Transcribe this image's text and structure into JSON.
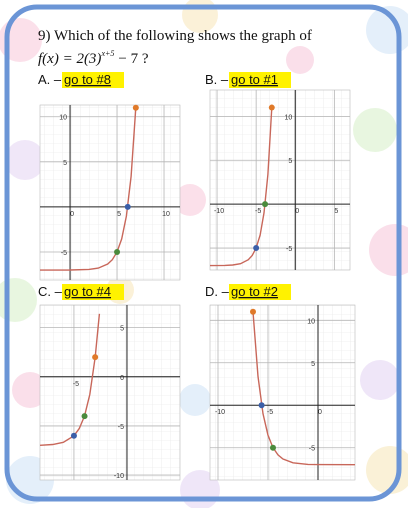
{
  "question": {
    "title": "9) Which of the following shows the graph of",
    "formula": {
      "lhs": "f(x) = 2(3)",
      "exponent": "x+5",
      "rhs": "− 7 ?"
    }
  },
  "options": [
    {
      "letter": "A. –",
      "link": "go to #8",
      "graph": {
        "xlim": [
          -3.2,
          11.7
        ],
        "ylim": [
          -8.1,
          11.3
        ],
        "xticks": [
          0,
          5,
          10
        ],
        "yticks": [
          10,
          5,
          -5
        ],
        "curve": {
          "x": [
            -3.2,
            0,
            2,
            3,
            4,
            4.5,
            5,
            5.5,
            6,
            6.5,
            7
          ],
          "y": [
            -7,
            -6.99,
            -6.93,
            -6.78,
            -6.33,
            -5.85,
            -5,
            -3.54,
            -1,
            3.39,
            11
          ]
        },
        "points": [
          {
            "x": 5,
            "y": -5,
            "color": "#4a8a3c"
          },
          {
            "x": 6.14,
            "y": 0,
            "color": "#3b5fa8"
          },
          {
            "x": 7,
            "y": 11,
            "color": "#e07a2a"
          }
        ]
      }
    },
    {
      "letter": "B. –",
      "link": "go to #1",
      "graph": {
        "xlim": [
          -10.9,
          7
        ],
        "ylim": [
          -7.5,
          13
        ],
        "xticks": [
          -10,
          -5,
          0,
          5
        ],
        "yticks": [
          10,
          5,
          -5
        ],
        "curve": {
          "x": [
            -10.9,
            -9,
            -8,
            -7,
            -6,
            -5.5,
            -5,
            -4.5,
            -4,
            -3.5,
            -3
          ],
          "y": [
            -7,
            -6.98,
            -6.93,
            -6.78,
            -6.33,
            -5.85,
            -5,
            -3.54,
            -1,
            3.39,
            11
          ]
        },
        "points": [
          {
            "x": -5,
            "y": -5,
            "color": "#3b5fa8"
          },
          {
            "x": -3.86,
            "y": 0,
            "color": "#4a8a3c"
          },
          {
            "x": -3,
            "y": 11,
            "color": "#e07a2a"
          }
        ]
      }
    },
    {
      "letter": "C. –",
      "link": "go to #4",
      "graph": {
        "xlim": [
          -8.2,
          5
        ],
        "ylim": [
          -10.5,
          7.3
        ],
        "xticks": [
          -5
        ],
        "yticks": [
          5,
          0,
          -5,
          -10
        ],
        "curve": {
          "x": [
            -8.2,
            -7,
            -6,
            -5,
            -4.5,
            -4,
            -3.5,
            -3,
            -2.6
          ],
          "y": [
            -6.97,
            -6.89,
            -6.67,
            -6,
            -5.27,
            -4,
            -1.8,
            2,
            6.4
          ]
        },
        "points": [
          {
            "x": -5,
            "y": -6,
            "color": "#3b5fa8"
          },
          {
            "x": -4,
            "y": -4,
            "color": "#4a8a3c"
          },
          {
            "x": -3,
            "y": 2,
            "color": "#e07a2a"
          }
        ]
      }
    },
    {
      "letter": "D. –",
      "link": "go to #2",
      "graph": {
        "xlim": [
          -10.8,
          3.7
        ],
        "ylim": [
          -8.8,
          11.8
        ],
        "xticks": [
          -10,
          -5,
          0
        ],
        "yticks": [
          10,
          5,
          -5
        ],
        "curve": {
          "x": [
            -6.5,
            -6,
            -5.5,
            -5,
            -4.5,
            -4,
            -3.5,
            -2.5,
            -1,
            0,
            3.7
          ],
          "y": [
            11,
            3.39,
            -1,
            -3.54,
            -5,
            -5.85,
            -6.33,
            -6.78,
            -6.96,
            -6.99,
            -7
          ]
        },
        "points": [
          {
            "x": -6.5,
            "y": 11,
            "color": "#e07a2a"
          },
          {
            "x": -5.64,
            "y": 0,
            "color": "#3b5fa8"
          },
          {
            "x": -4.5,
            "y": -5,
            "color": "#4a8a3c"
          }
        ]
      }
    }
  ]
}
